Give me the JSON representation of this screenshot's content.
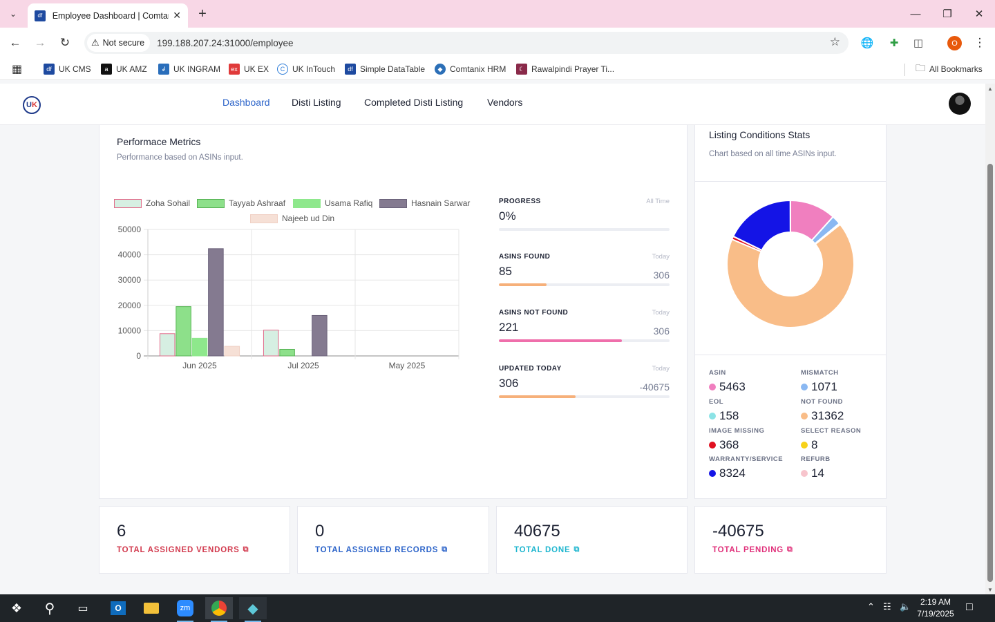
{
  "browser": {
    "tab_title": "Employee Dashboard | Comtani",
    "tab_favicon": "df",
    "security_label": "Not secure",
    "url": "199.188.207.24:31000/employee",
    "profile_initial": "O",
    "bookmarks": [
      {
        "label": "UK CMS",
        "icon": "df",
        "color": "#1e4aa0"
      },
      {
        "label": "UK AMZ",
        "icon": "a",
        "color": "#111111"
      },
      {
        "label": "UK INGRAM",
        "icon": "ingram-icon",
        "color": "#2a6ebb"
      },
      {
        "label": "UK EX",
        "icon": "ex",
        "color": "#e03a3a"
      },
      {
        "label": "UK InTouch",
        "icon": "C",
        "color": "#2b7bd8"
      },
      {
        "label": "Simple DataTable",
        "icon": "df",
        "color": "#1e4aa0"
      },
      {
        "label": "Comtanix HRM",
        "icon": "hrm-icon",
        "color": "#2c6fb7"
      },
      {
        "label": "Rawalpindi Prayer Ti...",
        "icon": "prayer-icon",
        "color": "#8a2a4a"
      }
    ],
    "all_bookmarks": "All Bookmarks"
  },
  "app": {
    "nav": [
      "Dashboard",
      "Disti Listing",
      "Completed Disti Listing",
      "Vendors"
    ],
    "active_nav": "Dashboard"
  },
  "performance": {
    "title": "Performace Metrics",
    "subtitle": "Performance based on ASINs input.",
    "metrics": [
      {
        "label": "PROGRESS",
        "when": "All Time",
        "value": "0%",
        "total": "",
        "fraction": 0,
        "color": "#cccccc"
      },
      {
        "label": "ASINS FOUND",
        "when": "Today",
        "value": "85",
        "total": "306",
        "fraction": 0.28,
        "color": "#f6b07a"
      },
      {
        "label": "ASINS NOT FOUND",
        "when": "Today",
        "value": "221",
        "total": "306",
        "fraction": 0.72,
        "color": "#ef6fab"
      },
      {
        "label": "UPDATED TODAY",
        "when": "Today",
        "value": "306",
        "total": "-40675",
        "fraction": 0.45,
        "color": "#f6b07a"
      }
    ]
  },
  "chart_data": {
    "type": "bar",
    "categories": [
      "Jun 2025",
      "Jul 2025",
      "May 2025"
    ],
    "ylim": [
      0,
      50000
    ],
    "yticks": [
      "50000",
      "40000",
      "30000",
      "20000",
      "10000",
      "0"
    ],
    "legend_position": "top",
    "series": [
      {
        "name": "Zoha Sohail",
        "values": [
          8800,
          10200,
          0
        ],
        "fill": "#d6efe2",
        "stroke": "#e26b8a"
      },
      {
        "name": "Tayyab Ashraaf",
        "values": [
          19500,
          2600,
          0
        ],
        "fill": "#8de08a",
        "stroke": "#58b455"
      },
      {
        "name": "Usama Rafiq",
        "values": [
          7000,
          0,
          0
        ],
        "fill": "#8ee88c",
        "stroke": "#8ee88c"
      },
      {
        "name": "Hasnain Sarwar",
        "values": [
          42400,
          16000,
          0
        ],
        "fill": "#847a90",
        "stroke": "#6b627a"
      },
      {
        "name": "Najeeb ud Din",
        "values": [
          3800,
          0,
          0
        ],
        "fill": "#f6e0d6",
        "stroke": "#f0d0c4"
      }
    ]
  },
  "listing": {
    "title": "Listing Conditions Stats",
    "subtitle": "Chart based on all time ASINs input.",
    "donut": {
      "type": "pie",
      "slices": [
        {
          "name": "ASIN",
          "value": 5463,
          "color": "#f07fbf"
        },
        {
          "name": "MISMATCH",
          "value": 1071,
          "color": "#8ab8f2"
        },
        {
          "name": "EOL",
          "value": 158,
          "color": "#8ce3e6"
        },
        {
          "name": "NOT FOUND",
          "value": 31362,
          "color": "#f9bd88"
        },
        {
          "name": "IMAGE MISSING",
          "value": 368,
          "color": "#e01020"
        },
        {
          "name": "SELECT REASON",
          "value": 8,
          "color": "#f7d21a"
        },
        {
          "name": "WARRANTY/SERVICE",
          "value": 8324,
          "color": "#1414e6"
        },
        {
          "name": "REFURB",
          "value": 14,
          "color": "#f7c4cc"
        }
      ]
    }
  },
  "kpis": [
    {
      "value": "6",
      "label": "TOTAL ASSIGNED VENDORS",
      "color": "#d23a4e"
    },
    {
      "value": "0",
      "label": "TOTAL ASSIGNED RECORDS",
      "color": "#2b63c9"
    },
    {
      "value": "40675",
      "label": "TOTAL DONE",
      "color": "#1fb6cf"
    },
    {
      "value": "-40675",
      "label": "TOTAL PENDING",
      "color": "#e0307a"
    }
  ],
  "taskbar": {
    "time": "2:19 AM",
    "date": "7/19/2025"
  }
}
